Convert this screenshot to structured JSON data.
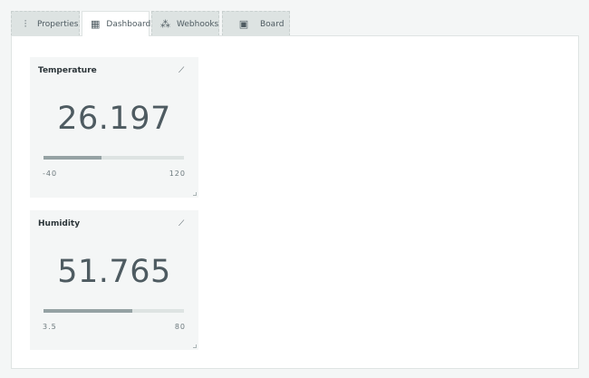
{
  "tabs": [
    {
      "label": "Properties",
      "icon": "sliders-icon",
      "active": false
    },
    {
      "label": "Dashboard",
      "icon": "grid-icon",
      "active": true
    },
    {
      "label": "Webhooks",
      "icon": "webhook-icon",
      "active": false
    },
    {
      "label": "Board",
      "icon": "chip-icon",
      "active": false
    }
  ],
  "widgets": [
    {
      "title": "Temperature",
      "value": "26.197",
      "min": "-40",
      "max": "120",
      "fill_percent": 41.4
    },
    {
      "title": "Humidity",
      "value": "51.765",
      "min": "3.5",
      "max": "80",
      "fill_percent": 63.1
    }
  ]
}
